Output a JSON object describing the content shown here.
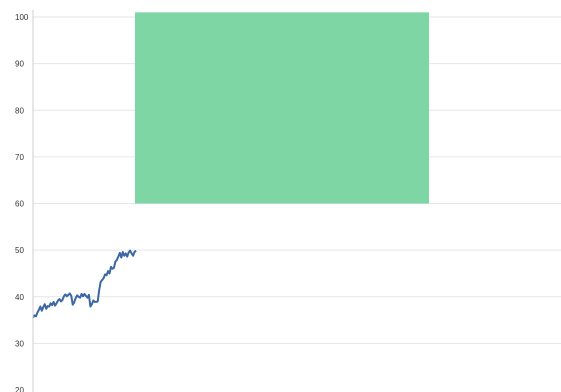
{
  "chart_data": {
    "type": "line",
    "title": "",
    "xlabel": "",
    "ylabel": "",
    "ylim": [
      20,
      100
    ],
    "yticks": [
      20,
      30,
      40,
      50,
      60,
      70,
      80,
      90,
      100
    ],
    "grid": true,
    "legend": "none",
    "series": [
      {
        "color": "#3c67a3",
        "y": [
          35.5,
          36.0,
          35.8,
          36.6,
          37.2,
          37.9,
          37.0,
          37.8,
          38.4,
          37.4,
          38.0,
          37.9,
          38.6,
          38.2,
          38.9,
          38.1,
          38.6,
          39.2,
          39.5,
          39.0,
          39.3,
          40.1,
          40.5,
          40.1,
          40.4,
          40.7,
          40.2,
          38.3,
          38.8,
          39.7,
          40.3,
          40.0,
          39.8,
          40.6,
          40.1,
          40.6,
          40.2,
          39.8,
          40.4,
          37.9,
          38.4,
          39.2,
          38.9,
          38.9,
          39.0,
          41.5,
          43.2,
          43.6,
          44.0,
          44.8,
          44.6,
          45.5,
          45.0,
          46.4,
          46.0,
          46.2,
          47.5,
          47.9,
          48.6,
          49.4,
          48.4,
          49.6,
          48.8,
          49.3,
          48.6,
          49.5,
          49.9,
          49.3,
          48.8,
          49.6,
          49.9
        ]
      }
    ],
    "band": {
      "color": "#7dd6a4",
      "y_range": [
        60,
        101
      ]
    }
  }
}
